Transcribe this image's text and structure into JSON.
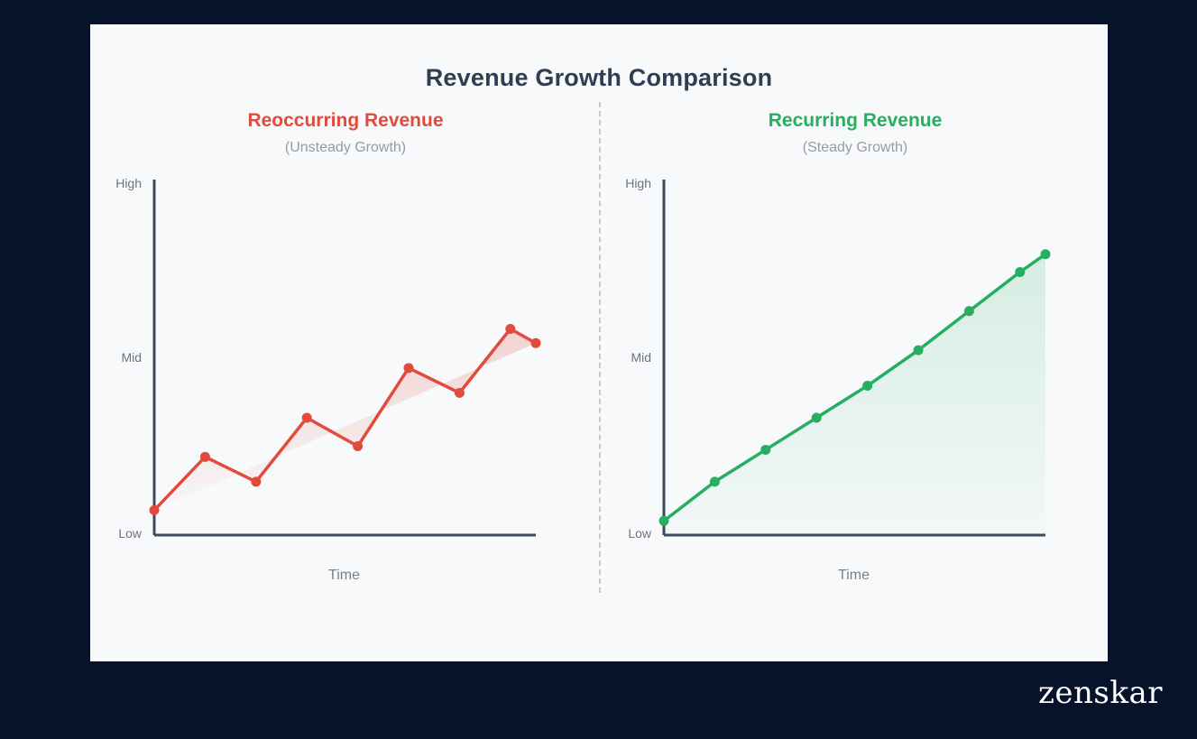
{
  "title": "Revenue Growth Comparison",
  "brand": "zenskar",
  "colors": {
    "background": "#07122b",
    "card": "#f7f9fb",
    "axis": "#3d4a5e",
    "red": "#e24b3b",
    "green": "#27ae60"
  },
  "chart_data": [
    {
      "type": "line",
      "title": "Reoccurring Revenue",
      "subtitle": "(Unsteady Growth)",
      "xlabel": "Time",
      "ylabel": "",
      "y_tick_labels": [
        "Low",
        "Mid",
        "High"
      ],
      "ylim": [
        0,
        100
      ],
      "color": "#e24b3b",
      "x": [
        0,
        1,
        2,
        3,
        4,
        5,
        6,
        7,
        7.5
      ],
      "values": [
        7,
        22,
        15,
        33,
        25,
        47,
        40,
        58,
        54
      ],
      "xlim": [
        0,
        7.5
      ]
    },
    {
      "type": "area",
      "title": "Recurring Revenue",
      "subtitle": "(Steady Growth)",
      "xlabel": "Time",
      "ylabel": "",
      "y_tick_labels": [
        "Low",
        "Mid",
        "High"
      ],
      "ylim": [
        0,
        100
      ],
      "color": "#27ae60",
      "x": [
        0,
        1,
        2,
        3,
        4,
        5,
        6,
        7,
        7.5
      ],
      "values": [
        4,
        15,
        24,
        33,
        42,
        52,
        63,
        74,
        79
      ],
      "xlim": [
        0,
        7.5
      ]
    }
  ]
}
